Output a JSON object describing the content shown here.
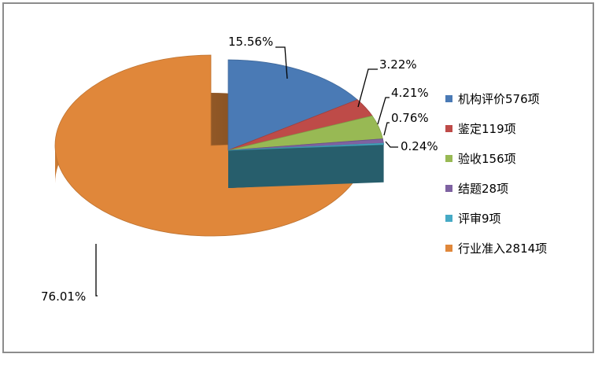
{
  "chart_data": {
    "type": "pie",
    "style": "3d-exploded",
    "title": "",
    "categories": [
      "机构评价576项",
      "鉴定119项",
      "验收156项",
      "结题28项",
      "评审9项",
      "行业准入2814项"
    ],
    "values": [
      576,
      119,
      156,
      28,
      9,
      2814
    ],
    "percent_labels": [
      "15.56%",
      "3.22%",
      "4.21%",
      "0.76%",
      "0.24%",
      "76.01%"
    ],
    "colors": [
      "#4a7ab5",
      "#be4b48",
      "#98b954",
      "#7e62a1",
      "#46aac5",
      "#e0873a"
    ],
    "legend_position": "right"
  }
}
